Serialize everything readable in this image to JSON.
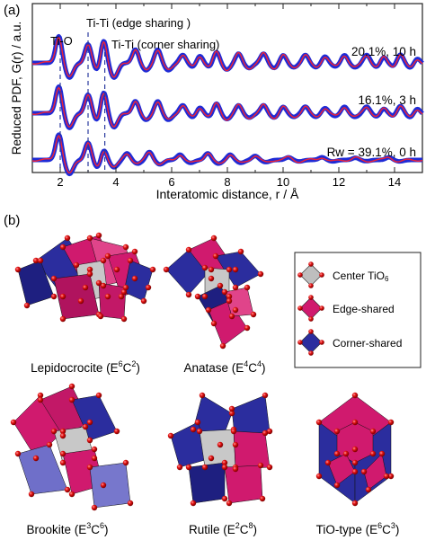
{
  "panel_a": {
    "panel_label": "(a)",
    "chart_data": {
      "type": "line",
      "title": "",
      "xlabel": "Interatomic distance, r / Å",
      "ylabel": "Reduced PDF, G(r) / a.u.",
      "xlim": [
        1,
        15
      ],
      "xticks": [
        2,
        4,
        6,
        8,
        10,
        12,
        14
      ],
      "grid": false,
      "annotations": [
        {
          "text": "Ti-O",
          "x": 2.0
        },
        {
          "text": "Ti-Ti (edge sharing )",
          "x": 3.0
        },
        {
          "text": "Ti-Ti (corner sharing)",
          "x": 3.6
        }
      ],
      "series": [
        {
          "label": "20.1%, 10 h",
          "peaks": [
            [
              1.95,
              1.0
            ],
            [
              3.0,
              0.7
            ],
            [
              3.55,
              1.0
            ],
            [
              4.7,
              0.5
            ],
            [
              5.5,
              0.5
            ],
            [
              6.4,
              0.3
            ],
            [
              7.0,
              0.3
            ],
            [
              7.6,
              0.45
            ],
            [
              8.4,
              0.35
            ],
            [
              9.3,
              0.35
            ],
            [
              10.0,
              0.3
            ],
            [
              10.8,
              0.3
            ],
            [
              11.5,
              0.25
            ],
            [
              12.2,
              0.3
            ],
            [
              13.0,
              0.3
            ],
            [
              13.6,
              0.25
            ],
            [
              14.2,
              0.35
            ],
            [
              14.8,
              0.2
            ]
          ]
        },
        {
          "label": "16.1%, 3 h",
          "peaks": [
            [
              1.95,
              1.0
            ],
            [
              3.0,
              0.7
            ],
            [
              3.55,
              0.95
            ],
            [
              4.7,
              0.45
            ],
            [
              5.5,
              0.45
            ],
            [
              6.4,
              0.3
            ],
            [
              7.0,
              0.25
            ],
            [
              7.6,
              0.4
            ],
            [
              8.4,
              0.3
            ],
            [
              9.3,
              0.3
            ],
            [
              10.0,
              0.25
            ],
            [
              10.8,
              0.25
            ],
            [
              11.5,
              0.2
            ],
            [
              12.2,
              0.25
            ],
            [
              13.0,
              0.25
            ],
            [
              13.6,
              0.2
            ],
            [
              14.2,
              0.3
            ],
            [
              14.8,
              0.2
            ]
          ]
        },
        {
          "label": "Rw = 39.1%, 0 h",
          "peaks": [
            [
              1.95,
              0.95
            ],
            [
              3.0,
              0.65
            ],
            [
              3.55,
              0.5
            ],
            [
              4.4,
              0.25
            ],
            [
              5.2,
              0.3
            ],
            [
              6.3,
              0.2
            ],
            [
              7.3,
              0.25
            ],
            [
              8.1,
              0.2
            ],
            [
              9.0,
              0.15
            ],
            [
              10.2,
              0.1
            ],
            [
              11.4,
              0.1
            ],
            [
              12.6,
              0.08
            ],
            [
              13.8,
              0.1
            ]
          ]
        }
      ],
      "colors": {
        "data": "#1f2bd6",
        "fit": "#e8233c",
        "marker": "#2a3a9e"
      }
    }
  },
  "panel_b": {
    "panel_label": "(b)",
    "structures": [
      {
        "name": "Lepidocrocite",
        "notation": {
          "e": "6",
          "c": "2"
        }
      },
      {
        "name": "Anatase",
        "notation": {
          "e": "4",
          "c": "4"
        }
      },
      {
        "name": "Brookite",
        "notation": {
          "e": "3",
          "c": "6"
        }
      },
      {
        "name": "Rutile",
        "notation": {
          "e": "2",
          "c": "8"
        }
      },
      {
        "name": "TiO-type",
        "notation": {
          "e": "6",
          "c": "3"
        }
      }
    ],
    "legend": [
      {
        "label": "Center TiO6",
        "color": "#bdbdbd"
      },
      {
        "label": "Edge-shared",
        "color": "#d01a6e"
      },
      {
        "label": "Corner-shared",
        "color": "#2b2d9e"
      }
    ],
    "colors": {
      "edge": "#d01a6e",
      "corner": "#28299a",
      "center": "#bebebe",
      "oxygen": "#e01010"
    }
  }
}
